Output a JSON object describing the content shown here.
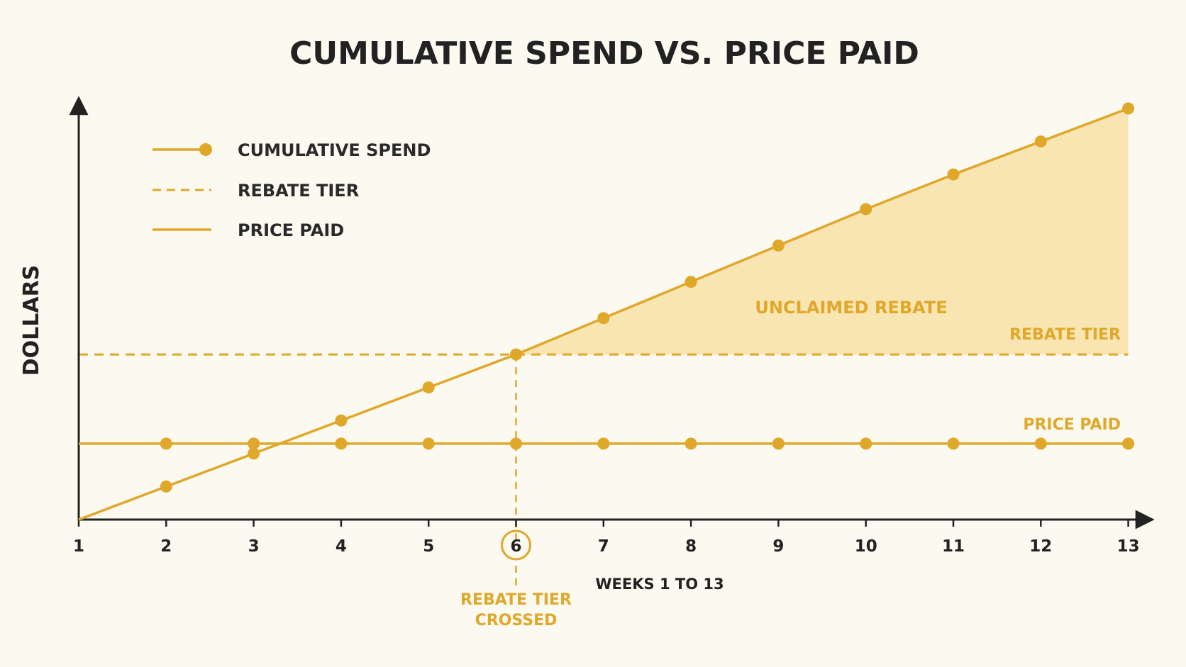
{
  "chart_data": {
    "type": "line",
    "title": "CUMULATIVE SPEND VS. PRICE PAID",
    "xlabel": "WEEKS 1 TO 13",
    "ylabel": "DOLLARS",
    "x": [
      1,
      2,
      3,
      4,
      5,
      6,
      7,
      8,
      9,
      10,
      11,
      12,
      13
    ],
    "xlim": [
      1,
      13.25
    ],
    "ylim": [
      0,
      12.6
    ],
    "grid": false,
    "legend_position": "top-left",
    "series": [
      {
        "name": "CUMULATIVE SPEND",
        "style": "line-markers",
        "values": [
          0.0,
          1.0,
          2.0,
          3.0,
          4.0,
          5.0,
          6.1,
          7.2,
          8.3,
          9.4,
          10.45,
          11.45,
          12.45
        ]
      },
      {
        "name": "REBATE TIER",
        "style": "dashed",
        "value": 5.0
      },
      {
        "name": "PRICE PAID",
        "style": "line-markers",
        "values": [
          2.3,
          2.3,
          2.3,
          2.3,
          2.3,
          2.3,
          2.3,
          2.3,
          2.3,
          2.3,
          2.3,
          2.3,
          2.3
        ]
      }
    ],
    "annotations": {
      "unclaimed_rebate": "UNCLAIMED REBATE",
      "rebate_tier_label": "REBATE TIER",
      "price_paid_label": "PRICE PAID",
      "crossed_line1": "REBATE TIER",
      "crossed_line2": "CROSSED",
      "crossed_week": 6
    },
    "colors": {
      "accent": "#e0a82a",
      "fill": "#f7e2a6",
      "axis": "#222222",
      "background": "#fcf9f0"
    }
  }
}
